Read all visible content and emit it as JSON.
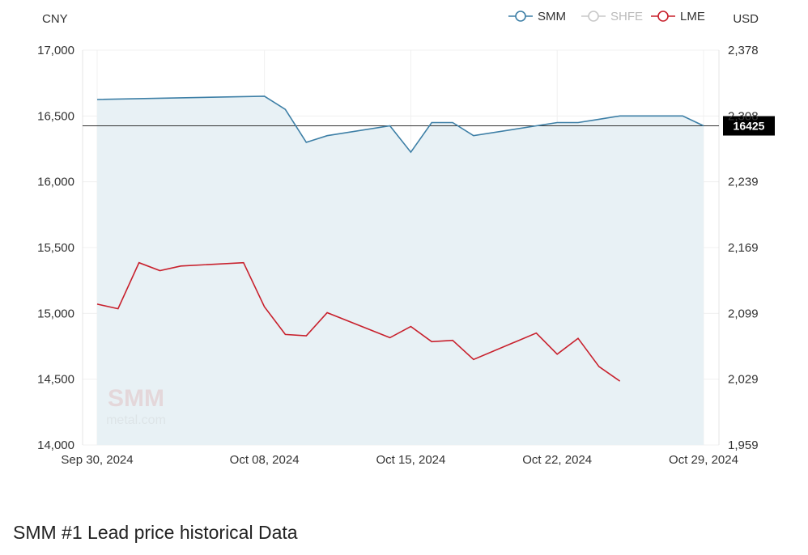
{
  "page_title": "SMM #1 Lead price historical Data",
  "chart_data": {
    "type": "line",
    "left_axis_label": "CNY",
    "right_axis_label": "USD",
    "left_ylim": [
      14000,
      17000
    ],
    "left_ticks": [
      "17,000",
      "16,500",
      "16,000",
      "15,500",
      "15,000",
      "14,500",
      "14,000"
    ],
    "right_ticks": [
      "2,378",
      "2,308",
      "2,239",
      "2,169",
      "2,099",
      "2,029",
      "1,959"
    ],
    "x_tick_labels": [
      "Sep 30, 2024",
      "Oct 08, 2024",
      "Oct 15, 2024",
      "Oct 22, 2024",
      "Oct 29, 2024"
    ],
    "x": [
      "Sep 30, 2024",
      "Oct 08, 2024",
      "Oct 09, 2024",
      "Oct 10, 2024",
      "Oct 11, 2024",
      "Oct 14, 2024",
      "Oct 15, 2024",
      "Oct 16, 2024",
      "Oct 17, 2024",
      "Oct 18, 2024",
      "Oct 21, 2024",
      "Oct 22, 2024",
      "Oct 23, 2024",
      "Oct 24, 2024",
      "Oct 25, 2024",
      "Oct 28, 2024",
      "Oct 29, 2024"
    ],
    "legend": [
      {
        "name": "SMM",
        "color": "#3d7fa6",
        "active": true
      },
      {
        "name": "SHFE",
        "color": "#c8c8c8",
        "active": false
      },
      {
        "name": "LME",
        "color": "#c8202c",
        "active": true
      }
    ],
    "series": [
      {
        "name": "SMM",
        "color": "#3d7fa6",
        "area_fill": "#e8f1f5",
        "x": [
          "Sep 30, 2024",
          "Oct 08, 2024",
          "Oct 09, 2024",
          "Oct 10, 2024",
          "Oct 11, 2024",
          "Oct 14, 2024",
          "Oct 15, 2024",
          "Oct 16, 2024",
          "Oct 17, 2024",
          "Oct 18, 2024",
          "Oct 21, 2024",
          "Oct 22, 2024",
          "Oct 23, 2024",
          "Oct 24, 2024",
          "Oct 25, 2024",
          "Oct 28, 2024",
          "Oct 29, 2024"
        ],
        "values": [
          16625,
          16650,
          16550,
          16300,
          16350,
          16425,
          16225,
          16450,
          16450,
          16350,
          16425,
          16450,
          16450,
          16475,
          16500,
          16500,
          16425
        ]
      },
      {
        "name": "LME",
        "color": "#c8202c",
        "x": [
          "Sep 30, 2024",
          "Oct 01, 2024",
          "Oct 02, 2024",
          "Oct 03, 2024",
          "Oct 04, 2024",
          "Oct 07, 2024",
          "Oct 08, 2024",
          "Oct 09, 2024",
          "Oct 10, 2024",
          "Oct 11, 2024",
          "Oct 14, 2024",
          "Oct 15, 2024",
          "Oct 16, 2024",
          "Oct 17, 2024",
          "Oct 18, 2024",
          "Oct 21, 2024",
          "Oct 22, 2024",
          "Oct 23, 2024",
          "Oct 24, 2024",
          "Oct 25, 2024",
          "Oct 28, 2024"
        ],
        "values": [
          15070,
          15035,
          15385,
          15325,
          15360,
          15385,
          15050,
          14840,
          14830,
          15005,
          14815,
          14900,
          14785,
          14795,
          14650,
          14850,
          14690,
          14810,
          14595,
          14485,
          null
        ]
      }
    ],
    "reference_line": {
      "value": 16425,
      "label": "16425",
      "color": "#333333"
    },
    "watermark": {
      "line1": "SMM",
      "line2": "metal.com"
    }
  }
}
